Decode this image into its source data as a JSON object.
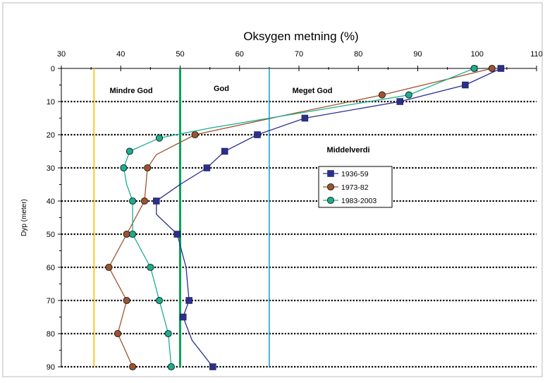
{
  "chart_data": {
    "type": "line",
    "title": "Oksygen metning (%)",
    "ylabel": "Dyp (meter)",
    "xlabel": "",
    "x_axis_position": "top",
    "xlim": [
      30,
      110
    ],
    "ylim": [
      0,
      90
    ],
    "y_inverted": true,
    "x_ticks": [
      "30",
      "40",
      "50",
      "60",
      "70",
      "80",
      "90",
      "100",
      "110"
    ],
    "y_ticks": [
      "0",
      "10",
      "20",
      "30",
      "40",
      "50",
      "60",
      "70",
      "80",
      "90"
    ],
    "grid": "horizontal dotted",
    "legend_placement": "center-right",
    "legend_title": "Middelverdi",
    "zones": [
      {
        "label": "Mindre God",
        "x_start": 35.5,
        "x_end": 50,
        "boundary_color": "#F2C200"
      },
      {
        "label": "God",
        "x_start": 50,
        "x_end": 65,
        "boundary_color": "#00A651"
      },
      {
        "label": "Meget God",
        "x_start": 65,
        "x_end": 110,
        "boundary_color": "#1FA3D1"
      }
    ],
    "reference_lines": [
      {
        "x": 35.5,
        "color": "#F2C200"
      },
      {
        "x": 50,
        "color": "#00A651"
      },
      {
        "x": 65,
        "color": "#1FA3D1"
      }
    ],
    "series": [
      {
        "name": "1936-59",
        "color": "#2A2F8F",
        "marker": "square",
        "points": [
          [
            104,
            0
          ],
          [
            98,
            5
          ],
          [
            87,
            10
          ],
          [
            71,
            15
          ],
          [
            63,
            20
          ],
          [
            57.5,
            25
          ],
          [
            54.5,
            30
          ],
          [
            46,
            40
          ],
          [
            49.5,
            50
          ],
          [
            51.5,
            70
          ],
          [
            50.5,
            75
          ],
          [
            55.5,
            90
          ]
        ],
        "curve": [
          [
            104,
            0
          ],
          [
            98,
            5
          ],
          [
            87,
            10
          ],
          [
            71,
            15
          ],
          [
            63,
            20
          ],
          [
            57.5,
            25
          ],
          [
            54.5,
            30
          ],
          [
            50,
            35
          ],
          [
            46,
            40
          ],
          [
            46,
            44
          ],
          [
            49.5,
            50
          ],
          [
            51,
            60
          ],
          [
            51.5,
            70
          ],
          [
            50.5,
            75
          ],
          [
            52,
            82
          ],
          [
            55.5,
            90
          ]
        ]
      },
      {
        "name": "1973-82",
        "color": "#A0522D",
        "marker": "circle",
        "points": [
          [
            102.5,
            0
          ],
          [
            84,
            8
          ],
          [
            52.5,
            20
          ],
          [
            44.5,
            30
          ],
          [
            44,
            40
          ],
          [
            41,
            50
          ],
          [
            38,
            60
          ],
          [
            41,
            70
          ],
          [
            39.5,
            80
          ],
          [
            42,
            90
          ]
        ],
        "curve": [
          [
            102.5,
            0
          ],
          [
            84,
            8
          ],
          [
            68,
            14
          ],
          [
            52.5,
            20
          ],
          [
            46,
            26
          ],
          [
            44.5,
            30
          ],
          [
            44,
            40
          ],
          [
            41,
            50
          ],
          [
            38,
            60
          ],
          [
            41,
            70
          ],
          [
            39.5,
            80
          ],
          [
            42,
            90
          ]
        ]
      },
      {
        "name": "1983-2003",
        "color": "#1AAE8E",
        "marker": "circle",
        "points": [
          [
            99.5,
            0
          ],
          [
            88.5,
            8
          ],
          [
            46.5,
            21
          ],
          [
            41.5,
            25
          ],
          [
            40.5,
            30
          ],
          [
            42,
            40
          ],
          [
            42,
            50
          ],
          [
            45,
            60
          ],
          [
            46.5,
            70
          ],
          [
            48,
            80
          ],
          [
            48.5,
            90
          ]
        ],
        "curve": [
          [
            99.5,
            0
          ],
          [
            88.5,
            8
          ],
          [
            65,
            15
          ],
          [
            55,
            18
          ],
          [
            46.5,
            21
          ],
          [
            41.5,
            25
          ],
          [
            40.5,
            30
          ],
          [
            41,
            35
          ],
          [
            42,
            40
          ],
          [
            42,
            50
          ],
          [
            45,
            60
          ],
          [
            46.5,
            70
          ],
          [
            48,
            80
          ],
          [
            48.5,
            90
          ]
        ]
      }
    ]
  }
}
